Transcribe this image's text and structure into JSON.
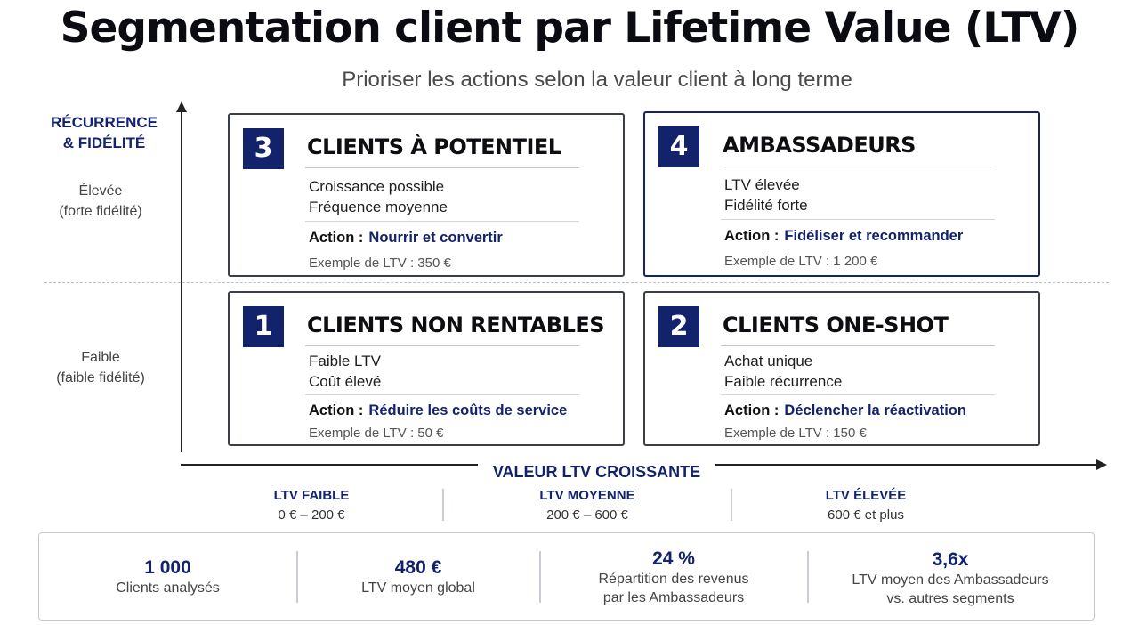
{
  "title": "Segmentation client par Lifetime Value (LTV)",
  "subtitle": "Prioriser les actions selon la valeur client à long terme",
  "colors": {
    "accent": "#12236b",
    "text": "#111111",
    "border": "#3a3f47"
  },
  "y_axis": {
    "title_line1": "RÉCURRENCE",
    "title_line2": "& FIDÉLITÉ",
    "high_line1": "Élevée",
    "high_line2": "(forte fidélité)",
    "low_line1": "Faible",
    "low_line2": "(faible fidélité)"
  },
  "x_axis": {
    "title": "VALEUR LTV CROISSANTE",
    "bands": [
      {
        "label": "LTV FAIBLE",
        "range": "0 € – 200 €"
      },
      {
        "label": "LTV MOYENNE",
        "range": "200 € – 600 €"
      },
      {
        "label": "LTV ÉLEVÉE",
        "range": "600 € et plus"
      }
    ]
  },
  "quadrants": {
    "q3": {
      "number": "3",
      "title": "CLIENTS À POTENTIEL",
      "line1": "Croissance possible",
      "line2": "Fréquence moyenne",
      "action_label": "Action :",
      "action": "Nourrir et convertir",
      "example": "Exemple de LTV :  350 €"
    },
    "q4": {
      "number": "4",
      "title": "AMBASSADEURS",
      "line1": "LTV élevée",
      "line2": "Fidélité forte",
      "action_label": "Action :",
      "action": "Fidéliser et recommander",
      "example": "Exemple de LTV : 1 200 €"
    },
    "q1": {
      "number": "1",
      "title": "CLIENTS NON RENTABLES",
      "line1": "Faible LTV",
      "line2": "Coût élevé",
      "action_label": "Action :",
      "action": "Réduire les coûts de service",
      "example": "Exemple de LTV : 50 €"
    },
    "q2": {
      "number": "2",
      "title": "CLIENTS ONE-SHOT",
      "line1": "Achat unique",
      "line2": "Faible récurrence",
      "action_label": "Action :",
      "action": "Déclencher la réactivation",
      "example": "Exemple de LTV : 150 €"
    }
  },
  "stats": [
    {
      "value": "1 000",
      "label1": "Clients analysés",
      "label2": ""
    },
    {
      "value": "480 €",
      "label1": "LTV moyen global",
      "label2": ""
    },
    {
      "value": "24 %",
      "label1": "Répartition des revenus",
      "label2": "par les Ambassadeurs"
    },
    {
      "value": "3,6x",
      "label1": "LTV moyen des Ambassadeurs",
      "label2": "vs. autres segments"
    }
  ]
}
